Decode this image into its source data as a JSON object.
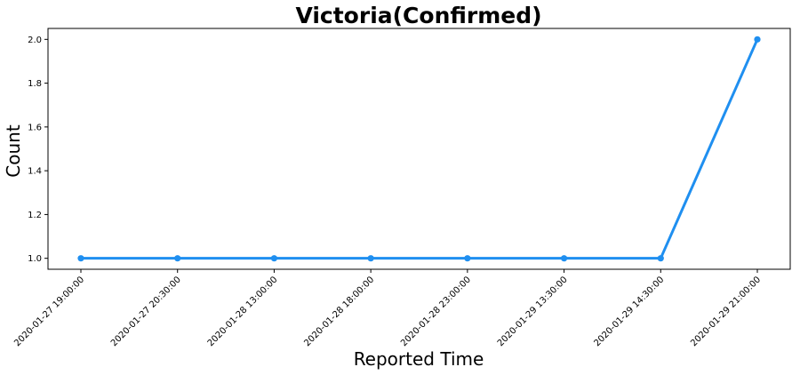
{
  "chart_data": {
    "type": "line",
    "title": "Victoria(Confirmed)",
    "xlabel": "Reported Time",
    "ylabel": "Count",
    "categories": [
      "2020-01-27 19:00:00",
      "2020-01-27 20:30:00",
      "2020-01-28 13:00:00",
      "2020-01-28 18:00:00",
      "2020-01-28 23:00:00",
      "2020-01-29 13:30:00",
      "2020-01-29 14:30:00",
      "2020-01-29 21:00:00"
    ],
    "series": [
      {
        "values": [
          1,
          1,
          1,
          1,
          1,
          1,
          1,
          2
        ],
        "color": "#1f8ff0"
      }
    ],
    "ylim": [
      0.95,
      2.05
    ],
    "yticks": [
      "1.0",
      "1.2",
      "1.4",
      "1.6",
      "1.8",
      "2.0"
    ],
    "grid": false,
    "legend": "none"
  }
}
